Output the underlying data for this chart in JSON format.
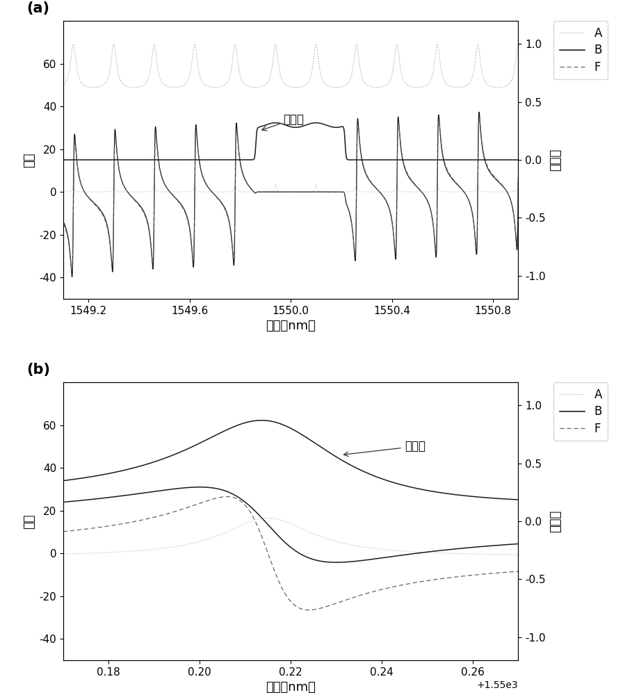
{
  "panel_a": {
    "xmin": 1549.1,
    "xmax": 1550.9,
    "xticks": [
      1549.2,
      1549.6,
      1550.0,
      1550.4,
      1550.8
    ],
    "ylim_left": [
      -50,
      80
    ],
    "ylim_right": [
      -1.2,
      1.2
    ],
    "yticks_left": [
      -40,
      -20,
      0,
      20,
      40,
      60
    ],
    "yticks_right": [
      -1.0,
      -0.5,
      0.0,
      0.5,
      1.0
    ],
    "ylabel_left": "系数",
    "ylabel_right": "透射率",
    "xlabel": "波长（nm）",
    "label": "(a)",
    "annotation": "透射谱"
  },
  "panel_b": {
    "xmin": 1550.17,
    "xmax": 1550.27,
    "xticks": [
      1550.18,
      1550.2,
      1550.22,
      1550.24,
      1550.26
    ],
    "ylim_left": [
      -50,
      80
    ],
    "ylim_right": [
      -1.2,
      1.2
    ],
    "yticks_left": [
      -40,
      -20,
      0,
      20,
      40,
      60
    ],
    "yticks_right": [
      -1.0,
      -0.5,
      0.0,
      0.5,
      1.0
    ],
    "ylabel_left": "系数",
    "ylabel_right": "透射率",
    "xlabel": "波长（nm）",
    "label": "(b)",
    "annotation": "透射谱"
  },
  "line_A_color": "#aaaaaa",
  "line_B_color": "#1a1a1a",
  "line_F_color": "#666666",
  "line_T_color": "#1a1a1a",
  "background_color": "#ffffff",
  "fontsize_label": 13,
  "fontsize_tick": 11,
  "fontsize_legend": 12,
  "fontsize_annotation": 12,
  "fontsize_panel_label": 15
}
